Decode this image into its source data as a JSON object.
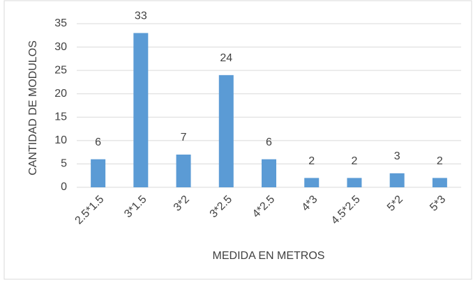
{
  "chart_data": {
    "type": "bar",
    "categories": [
      "2.5*1.5",
      "3*1.5",
      "3*2",
      "3*2.5",
      "4*2.5",
      "4*3",
      "4.5*2.5",
      "5*2",
      "5*3"
    ],
    "values": [
      6,
      33,
      7,
      24,
      6,
      2,
      2,
      3,
      2
    ],
    "color": "#5b9bd5",
    "xlabel": "MEDIDA EN METROS",
    "ylabel": "CANTIDAD DE MODULOS",
    "ylim": [
      0,
      35
    ],
    "yticks": [
      0,
      5,
      10,
      15,
      20,
      25,
      30,
      35
    ],
    "grid": true
  }
}
